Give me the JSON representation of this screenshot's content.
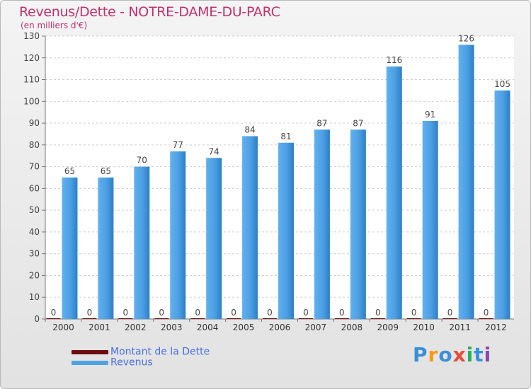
{
  "header": {
    "title": "Revenus/Dette - NOTRE-DAME-DU-PARC",
    "subtitle": "(en milliers d'€)"
  },
  "chart_data": {
    "type": "bar",
    "categories": [
      "2000",
      "2001",
      "2002",
      "2003",
      "2004",
      "2005",
      "2006",
      "2007",
      "2008",
      "2009",
      "2010",
      "2011",
      "2012"
    ],
    "series": [
      {
        "name": "Montant de la Dette",
        "color": "#6b0d0d",
        "values": [
          0,
          0,
          0,
          0,
          0,
          0,
          0,
          0,
          0,
          0,
          0,
          0,
          0
        ]
      },
      {
        "name": "Revenus",
        "color": "#4ea3e6",
        "values": [
          65,
          65,
          70,
          77,
          74,
          84,
          81,
          87,
          87,
          116,
          91,
          126,
          105
        ]
      }
    ],
    "ylim": [
      0,
      130
    ],
    "yticks": [
      0,
      10,
      20,
      30,
      40,
      50,
      60,
      70,
      80,
      90,
      100,
      110,
      120,
      130
    ],
    "grid": true,
    "legend": "bottom-left"
  },
  "legend": {
    "items": [
      {
        "label": "Montant de la Dette",
        "color": "#6b0d0d"
      },
      {
        "label": "Revenus",
        "color": "#4ea3e6"
      }
    ]
  },
  "brand": {
    "name": "Proxiti",
    "letters": [
      "P",
      "r",
      "o",
      "x",
      "i",
      "t",
      "i"
    ],
    "colors": [
      "#3a8fd8",
      "#f39c12",
      "#3a8fd8",
      "#e74c3c",
      "#27ae60",
      "#3a8fd8",
      "#8e44ad"
    ]
  }
}
